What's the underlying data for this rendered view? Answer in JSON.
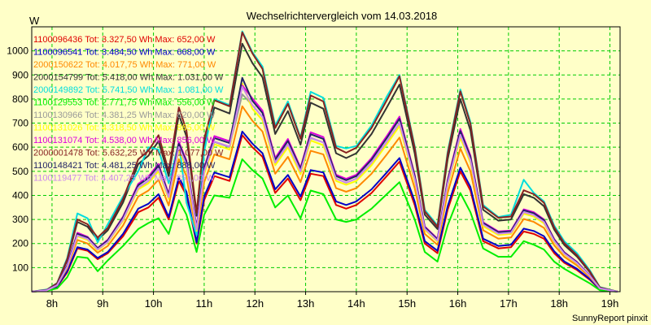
{
  "chart_data": {
    "type": "line",
    "title": "Wechselrichtervergleich vom 14.03.2018",
    "ylabel": "W",
    "xlabel": "",
    "footer": "SunnyReport pinxit",
    "xlim": [
      7.6,
      19.2
    ],
    "ylim": [
      0,
      1100
    ],
    "grid": true,
    "legend_placement": "top-left",
    "x_ticks": [
      {
        "value": 8,
        "label": "8h"
      },
      {
        "value": 9,
        "label": "9h"
      },
      {
        "value": 10,
        "label": "10h"
      },
      {
        "value": 11,
        "label": "11h"
      },
      {
        "value": 12,
        "label": "12h"
      },
      {
        "value": 13,
        "label": "13h"
      },
      {
        "value": 14,
        "label": "14h"
      },
      {
        "value": 15,
        "label": "15h"
      },
      {
        "value": 16,
        "label": "16h"
      },
      {
        "value": 17,
        "label": "17h"
      },
      {
        "value": 18,
        "label": "18h"
      },
      {
        "value": 19,
        "label": "19h"
      }
    ],
    "y_ticks": [
      100,
      200,
      300,
      400,
      500,
      600,
      700,
      800,
      900,
      1000
    ],
    "x": [
      7.6,
      7.9,
      8.1,
      8.3,
      8.5,
      8.7,
      8.9,
      9.1,
      9.4,
      9.7,
      9.9,
      10.1,
      10.3,
      10.5,
      10.65,
      10.85,
      11.0,
      11.2,
      11.5,
      11.75,
      11.95,
      12.15,
      12.4,
      12.65,
      12.9,
      13.1,
      13.35,
      13.6,
      13.8,
      14.0,
      14.3,
      14.6,
      14.85,
      15.15,
      15.35,
      15.6,
      15.8,
      16.05,
      16.25,
      16.5,
      16.8,
      17.05,
      17.3,
      17.5,
      17.7,
      17.9,
      18.1,
      18.35,
      18.6,
      18.8,
      19.15
    ],
    "series": [
      {
        "name": "1100096436 Tot: 3.327,50 Wh Max: 652,00 W",
        "color": "#e00000",
        "values": [
          0,
          5,
          20,
          80,
          180,
          170,
          135,
          160,
          230,
          330,
          350,
          390,
          300,
          460,
          400,
          200,
          380,
          480,
          460,
          650,
          600,
          560,
          410,
          470,
          380,
          490,
          480,
          360,
          345,
          360,
          410,
          480,
          540,
          360,
          200,
          160,
          340,
          500,
          420,
          210,
          180,
          185,
          250,
          240,
          220,
          160,
          120,
          90,
          50,
          10,
          0
        ]
      },
      {
        "name": "1100096541 Tot: 3.484,50 Wh Max: 668,00 W",
        "color": "#0000c8",
        "values": [
          0,
          5,
          22,
          85,
          185,
          175,
          140,
          165,
          240,
          345,
          365,
          405,
          310,
          475,
          415,
          205,
          395,
          495,
          475,
          665,
          615,
          575,
          425,
          485,
          395,
          505,
          495,
          375,
          360,
          375,
          425,
          495,
          555,
          375,
          210,
          170,
          355,
          515,
          435,
          220,
          190,
          195,
          262,
          252,
          230,
          168,
          126,
          95,
          53,
          11,
          0
        ]
      },
      {
        "name": "2000150622 Tot: 4.017,75 Wh Max: 771,00 W",
        "color": "#ff8800",
        "values": [
          0,
          6,
          26,
          98,
          215,
          200,
          162,
          190,
          275,
          395,
          420,
          465,
          358,
          550,
          480,
          235,
          455,
          570,
          550,
          770,
          710,
          665,
          490,
          560,
          455,
          585,
          570,
          430,
          415,
          430,
          490,
          570,
          640,
          430,
          240,
          195,
          410,
          595,
          500,
          255,
          220,
          225,
          302,
          290,
          265,
          193,
          145,
          109,
          61,
          13,
          0
        ]
      },
      {
        "name": "2000154799 Tot: 5.418,00 Wh Max: 1.031,00 W",
        "color": "#333333",
        "values": [
          0,
          8,
          34,
          130,
          290,
          270,
          215,
          255,
          370,
          530,
          565,
          625,
          480,
          735,
          645,
          315,
          610,
          765,
          740,
          1030,
          950,
          890,
          655,
          750,
          610,
          785,
          760,
          575,
          555,
          575,
          655,
          765,
          860,
          575,
          320,
          260,
          550,
          800,
          670,
          340,
          295,
          300,
          405,
          390,
          355,
          258,
          194,
          146,
          82,
          17,
          0
        ]
      },
      {
        "name": "2000149892 Tot: 5.741,50 Wh Max: 1.081,00 W",
        "color": "#00dddd",
        "values": [
          0,
          9,
          36,
          140,
          325,
          305,
          205,
          280,
          395,
          500,
          600,
          590,
          450,
          620,
          370,
          235,
          580,
          800,
          775,
          1081,
          995,
          935,
          690,
          790,
          640,
          830,
          805,
          605,
          595,
          605,
          690,
          810,
          900,
          605,
          340,
          275,
          580,
          840,
          705,
          360,
          310,
          320,
          465,
          410,
          375,
          275,
          210,
          160,
          90,
          19,
          0
        ]
      },
      {
        "name": "1100129553 Tot: 2.771,75 Wh Max: 556,00 W",
        "color": "#00ee00",
        "values": [
          0,
          4,
          14,
          60,
          145,
          140,
          85,
          130,
          190,
          260,
          285,
          305,
          240,
          380,
          320,
          165,
          320,
          400,
          390,
          550,
          505,
          470,
          350,
          400,
          305,
          420,
          405,
          300,
          290,
          300,
          345,
          405,
          455,
          300,
          165,
          125,
          275,
          410,
          330,
          180,
          145,
          145,
          210,
          195,
          175,
          125,
          95,
          65,
          35,
          6,
          0
        ]
      },
      {
        "name": "1100130966 Tot: 4.381,25 Wh Max: 820,00 W",
        "color": "#999999",
        "values": [
          0,
          6,
          28,
          105,
          235,
          220,
          176,
          208,
          300,
          430,
          460,
          510,
          392,
          600,
          525,
          257,
          498,
          622,
          600,
          820,
          775,
          725,
          535,
          612,
          497,
          638,
          620,
          470,
          452,
          470,
          535,
          622,
          700,
          470,
          262,
          212,
          448,
          650,
          545,
          278,
          240,
          245,
          330,
          318,
          290,
          211,
          158,
          119,
          67,
          14,
          0
        ]
      },
      {
        "name": "1100131026 Tot: 4.318,50 Wh Max: 865,00 W",
        "color": "#ffff00",
        "values": [
          0,
          6,
          27,
          103,
          230,
          215,
          172,
          204,
          295,
          425,
          450,
          500,
          385,
          590,
          515,
          252,
          490,
          612,
          590,
          865,
          760,
          712,
          525,
          600,
          488,
          628,
          608,
          460,
          444,
          460,
          525,
          612,
          688,
          460,
          257,
          208,
          440,
          640,
          535,
          272,
          236,
          240,
          324,
          312,
          284,
          207,
          155,
          117,
          66,
          14,
          0
        ]
      },
      {
        "name": "1100131074 Tot: 4.538,00 Wh Max: 856,00 W",
        "color": "#dd00dd",
        "values": [
          0,
          7,
          29,
          110,
          245,
          228,
          182,
          216,
          312,
          448,
          478,
          530,
          406,
          622,
          546,
          267,
          516,
          646,
          625,
          856,
          803,
          752,
          555,
          634,
          516,
          662,
          642,
          486,
          469,
          486,
          555,
          646,
          727,
          486,
          271,
          220,
          465,
          676,
          566,
          288,
          250,
          254,
          342,
          330,
          300,
          219,
          164,
          124,
          69,
          15,
          0
        ]
      },
      {
        "name": "2000001478 Tot: 5.632,25 Wh Max: 1.077,00 W",
        "color": "#882222",
        "values": [
          0,
          8,
          35,
          135,
          300,
          280,
          225,
          265,
          385,
          550,
          585,
          650,
          500,
          765,
          670,
          328,
          635,
          795,
          770,
          1077,
          990,
          925,
          680,
          780,
          635,
          815,
          790,
          598,
          577,
          598,
          680,
          795,
          895,
          598,
          333,
          270,
          572,
          832,
          697,
          354,
          307,
          312,
          421,
          405,
          369,
          268,
          202,
          152,
          85,
          18,
          0
        ]
      },
      {
        "name": "1100148421 Tot: 4.481,25 Wh Max: 888,00 W",
        "color": "#222266",
        "values": [
          0,
          7,
          28,
          108,
          240,
          225,
          180,
          213,
          308,
          442,
          472,
          523,
          401,
          614,
          539,
          264,
          510,
          638,
          617,
          888,
          793,
          742,
          548,
          626,
          510,
          654,
          634,
          480,
          463,
          480,
          548,
          638,
          718,
          480,
          268,
          217,
          459,
          667,
          559,
          285,
          247,
          251,
          338,
          326,
          297,
          216,
          162,
          122,
          68,
          15,
          0
        ]
      },
      {
        "name": "1100119477 Tot: 4.407,25 Wh Max: 851,00 W",
        "color": "#cc88ee",
        "values": [
          0,
          6,
          27,
          104,
          234,
          219,
          175,
          207,
          300,
          432,
          461,
          511,
          392,
          601,
          527,
          258,
          499,
          624,
          603,
          851,
          775,
          726,
          536,
          612,
          499,
          640,
          620,
          469,
          453,
          469,
          536,
          624,
          702,
          469,
          262,
          212,
          449,
          652,
          546,
          279,
          241,
          245,
          330,
          318,
          290,
          211,
          158,
          119,
          67,
          14,
          0
        ]
      }
    ]
  }
}
